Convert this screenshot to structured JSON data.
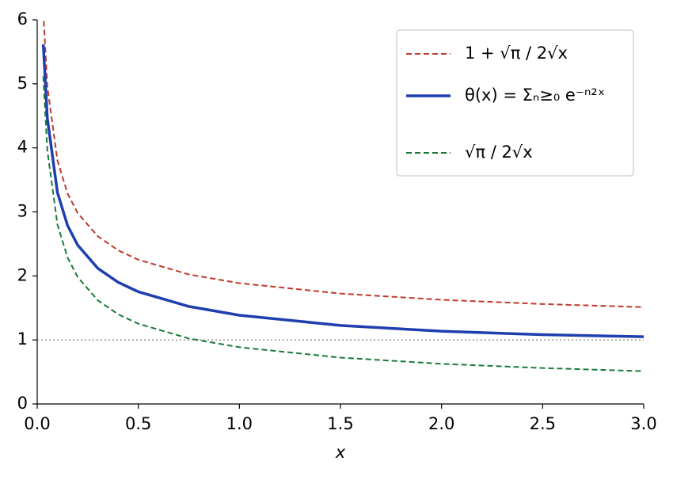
{
  "chart_data": {
    "type": "line",
    "x_label": "x",
    "x": [
      0.03,
      0.05,
      0.1,
      0.15,
      0.2,
      0.3,
      0.4,
      0.5,
      0.75,
      1.0,
      1.5,
      2.0,
      2.5,
      3.0
    ],
    "series": [
      {
        "name": "1 + √π / 2√x",
        "color": "#c0392b",
        "style": "dashed",
        "width": 2,
        "values": [
          6.117,
          4.963,
          3.803,
          3.288,
          2.982,
          2.618,
          2.401,
          2.253,
          2.023,
          1.886,
          1.724,
          1.627,
          1.561,
          1.512
        ]
      },
      {
        "name": "θ(x) = Σₙ≥₀ e⁻ⁿ²ˣ",
        "color": "#1f3fae",
        "style": "solid",
        "width": 3.5,
        "values": [
          5.617,
          4.463,
          3.303,
          2.788,
          2.482,
          2.118,
          1.901,
          1.753,
          1.523,
          1.386,
          1.226,
          1.136,
          1.082,
          1.05
        ]
      },
      {
        "name": "√π / 2√x",
        "color": "#1a7a3a",
        "style": "dashed",
        "width": 2,
        "values": [
          5.117,
          3.963,
          2.803,
          2.288,
          1.982,
          1.618,
          1.401,
          1.253,
          1.023,
          0.886,
          0.724,
          0.627,
          0.561,
          0.512
        ]
      }
    ],
    "reference_line": {
      "y": 1,
      "color": "#888888"
    },
    "xlim": [
      0,
      3
    ],
    "ylim": [
      0,
      6
    ],
    "xticks": [
      {
        "value": 0,
        "label": "0.0"
      },
      0.5,
      {
        "value": 1,
        "label": "1.0"
      },
      1.5,
      {
        "value": 2,
        "label": "2.0"
      },
      2.5,
      {
        "value": 3,
        "label": "3.0"
      }
    ],
    "yticks": [
      0,
      1,
      2,
      3,
      4,
      5,
      6
    ],
    "legend": "upper right"
  }
}
